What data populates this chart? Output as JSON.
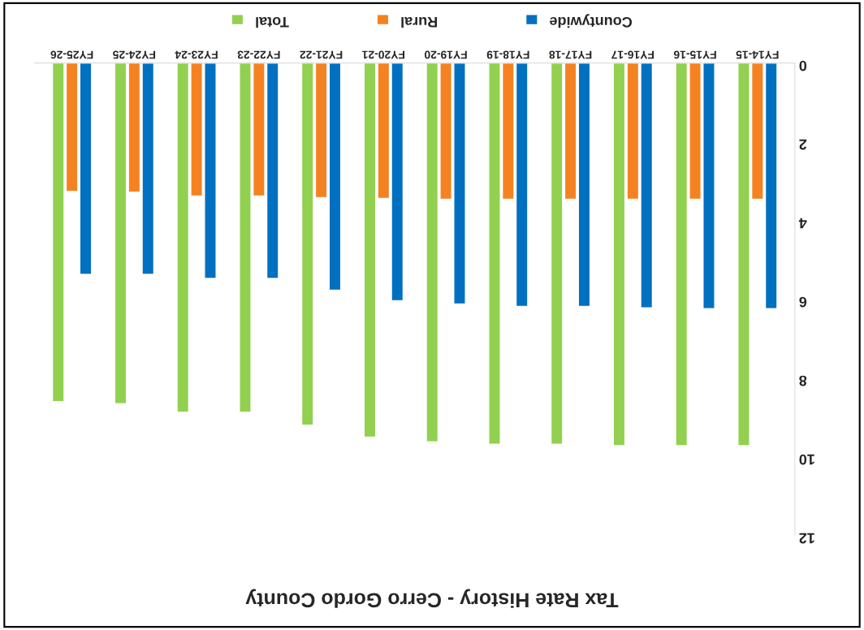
{
  "chart_data": {
    "type": "bar",
    "title": "Tax Rate History - Cerro Gordo County",
    "categories": [
      "FY25-26",
      "FY24-25",
      "FY23-24",
      "FY22-23",
      "FY21-22",
      "FY20-21",
      "FY19-20",
      "FY18-19",
      "FY17-18",
      "FY16-17",
      "FY15-16",
      "FY14-15"
    ],
    "series": [
      {
        "name": "Total",
        "color": "#92d050",
        "values": [
          8.6,
          8.65,
          8.87,
          8.87,
          9.2,
          9.5,
          9.62,
          9.68,
          9.68,
          9.72,
          9.72,
          9.72
        ]
      },
      {
        "name": "Rural",
        "color": "#f58220",
        "values": [
          3.26,
          3.28,
          3.38,
          3.38,
          3.42,
          3.44,
          3.46,
          3.46,
          3.46,
          3.46,
          3.46,
          3.46
        ]
      },
      {
        "name": "Countywide",
        "color": "#0070c0",
        "values": [
          5.37,
          5.37,
          5.47,
          5.47,
          5.77,
          6.04,
          6.12,
          6.18,
          6.18,
          6.22,
          6.24,
          6.24
        ]
      }
    ],
    "ylim": [
      12,
      0
    ],
    "yticks": [
      0,
      2,
      4,
      6,
      8,
      10,
      12
    ],
    "grid": false,
    "legend": "top"
  }
}
